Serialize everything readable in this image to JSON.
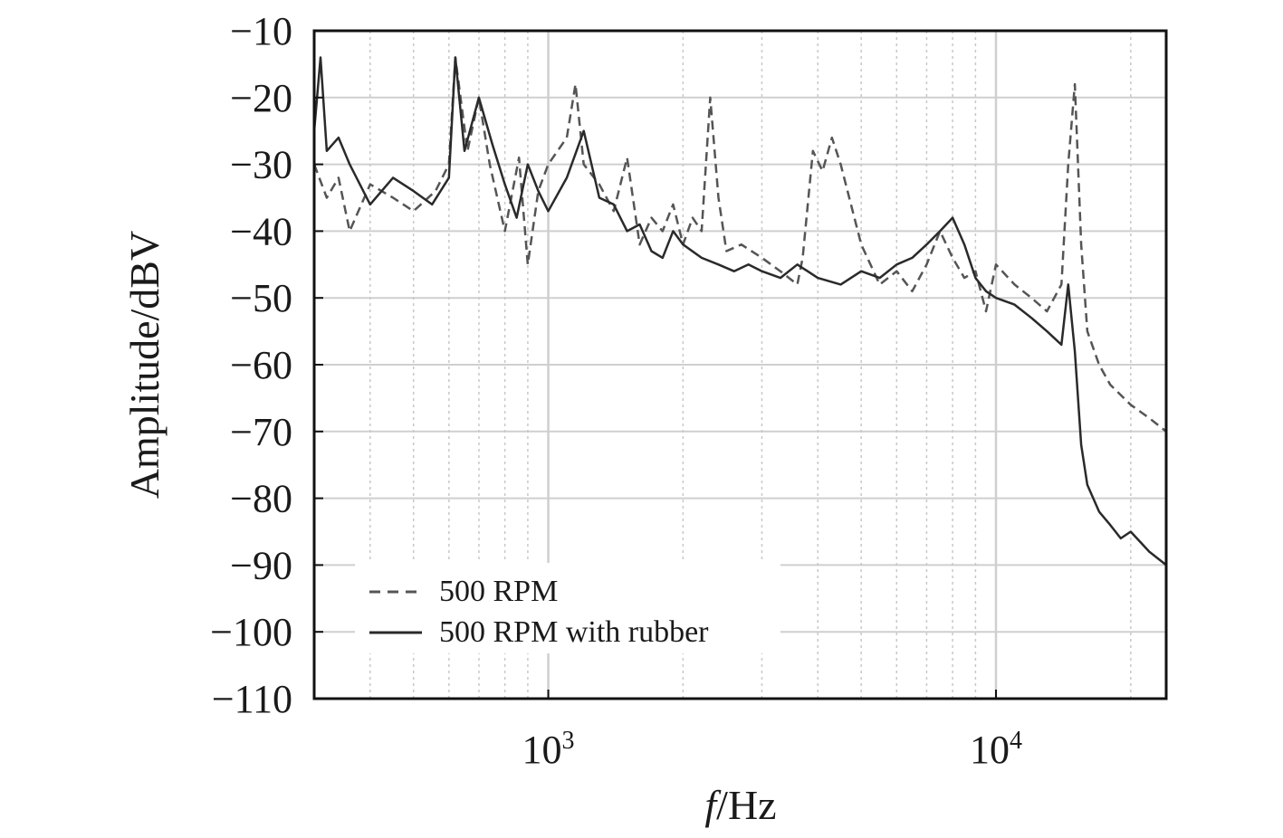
{
  "chart_data": {
    "type": "line",
    "title": "",
    "xlabel_italic": "f",
    "xlabel_rest": "/Hz",
    "ylabel": "Amplitude/dBV",
    "x_scale": "log",
    "xlim": [
      300,
      24000
    ],
    "ylim": [
      -110,
      -10
    ],
    "yticks": [
      -10,
      -20,
      -30,
      -40,
      -50,
      -60,
      -70,
      -80,
      -90,
      -100,
      -110
    ],
    "ytick_labels": [
      "−10",
      "−20",
      "−30",
      "−40",
      "−50",
      "−60",
      "−70",
      "−80",
      "−90",
      "−100",
      "−110"
    ],
    "xticks": [
      {
        "value": 1000,
        "base": "10",
        "exp": "3"
      },
      {
        "value": 10000,
        "base": "10",
        "exp": "4"
      }
    ],
    "grid": true,
    "legend_position": "lower-left",
    "series": [
      {
        "name": "500 RPM",
        "style": "dashed",
        "color": "#555555",
        "x": [
          300,
          320,
          340,
          360,
          400,
          450,
          500,
          560,
          600,
          620,
          660,
          700,
          740,
          800,
          860,
          900,
          950,
          1000,
          1100,
          1150,
          1200,
          1300,
          1400,
          1500,
          1600,
          1700,
          1800,
          1900,
          2000,
          2100,
          2200,
          2300,
          2400,
          2500,
          2700,
          3000,
          3300,
          3600,
          3700,
          3900,
          4100,
          4300,
          4500,
          5000,
          5500,
          6000,
          6500,
          7000,
          7500,
          8000,
          8500,
          9000,
          9500,
          10000,
          11000,
          12000,
          13000,
          14000,
          14500,
          15000,
          15500,
          16000,
          17000,
          18000,
          20000,
          22000,
          24000
        ],
        "y": [
          -30,
          -35,
          -32,
          -40,
          -33,
          -35,
          -37,
          -34,
          -30,
          -14,
          -28,
          -20,
          -30,
          -40,
          -29,
          -45,
          -34,
          -30,
          -26,
          -18,
          -30,
          -33,
          -37,
          -29,
          -42,
          -38,
          -40,
          -36,
          -42,
          -38,
          -40,
          -20,
          -35,
          -43,
          -42,
          -44,
          -46,
          -48,
          -44,
          -28,
          -31,
          -26,
          -30,
          -42,
          -48,
          -46,
          -49,
          -45,
          -40,
          -44,
          -47,
          -46,
          -52,
          -45,
          -48,
          -50,
          -52,
          -48,
          -30,
          -18,
          -42,
          -55,
          -60,
          -63,
          -66,
          -68,
          -70
        ]
      },
      {
        "name": "500 RPM with rubber",
        "style": "solid",
        "color": "#2a2a2a",
        "x": [
          300,
          310,
          320,
          340,
          360,
          400,
          450,
          500,
          550,
          600,
          620,
          650,
          700,
          750,
          800,
          850,
          900,
          950,
          1000,
          1100,
          1200,
          1300,
          1400,
          1500,
          1600,
          1700,
          1800,
          1900,
          2000,
          2200,
          2400,
          2600,
          2800,
          3000,
          3300,
          3600,
          4000,
          4500,
          5000,
          5500,
          6000,
          6500,
          7000,
          7500,
          8000,
          8500,
          9000,
          9500,
          10000,
          11000,
          12000,
          13000,
          14000,
          14500,
          15000,
          15500,
          16000,
          17000,
          18000,
          19000,
          20000,
          22000,
          24000
        ],
        "y": [
          -25,
          -14,
          -28,
          -26,
          -30,
          -36,
          -32,
          -34,
          -36,
          -32,
          -14,
          -28,
          -20,
          -27,
          -33,
          -38,
          -30,
          -34,
          -37,
          -32,
          -25,
          -35,
          -36,
          -40,
          -39,
          -43,
          -44,
          -40,
          -42,
          -44,
          -45,
          -46,
          -45,
          -46,
          -47,
          -45,
          -47,
          -48,
          -46,
          -47,
          -45,
          -44,
          -42,
          -40,
          -38,
          -42,
          -47,
          -49,
          -50,
          -51,
          -53,
          -55,
          -57,
          -48,
          -58,
          -72,
          -78,
          -82,
          -84,
          -86,
          -85,
          -88,
          -90
        ]
      }
    ]
  }
}
